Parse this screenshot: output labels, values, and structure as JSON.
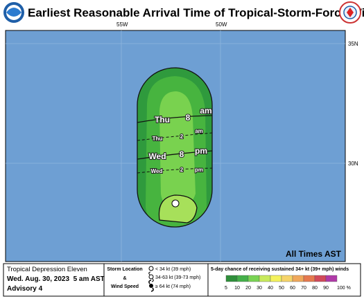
{
  "header": {
    "title": "Earliest Reasonable Arrival Time of Tropical-Storm-Force Winds"
  },
  "map": {
    "lon_labels": [
      "55W",
      "50W"
    ],
    "lat_labels": [
      "35N",
      "30N"
    ],
    "time_labels": [
      {
        "day": "Thu",
        "hour": "8",
        "ampm": "am"
      },
      {
        "day": "Thu",
        "hour": "2",
        "ampm": "am"
      },
      {
        "day": "Wed",
        "hour": "8",
        "ampm": "pm"
      },
      {
        "day": "Wed",
        "hour": "2",
        "ampm": "pm"
      }
    ],
    "note": "All Times AST"
  },
  "footer": {
    "storm": "Tropical Depression Eleven",
    "issued": "Wed. Aug. 30, 2023  5 am AST",
    "advisory": "Advisory 4",
    "legend_title": [
      "Storm Location",
      "&",
      "Wind Speed"
    ],
    "legend_items": [
      "< 34 kt (39 mph)",
      "34-63 kt (39-73 mph)",
      "≥ 64 kt (74 mph)"
    ],
    "scale_title": "5-day chance of receiving sustained 34+ kt (39+ mph) winds",
    "scale_labels": [
      "5",
      "10",
      "20",
      "30",
      "40",
      "50",
      "60",
      "70",
      "80",
      "90",
      "100 %"
    ]
  }
}
